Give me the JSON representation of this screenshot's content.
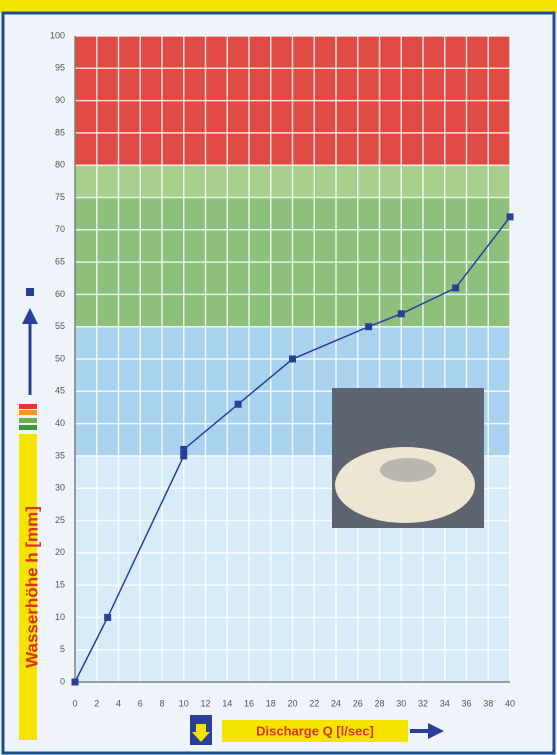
{
  "chart_data": {
    "type": "line",
    "x_label": "Discharge Q [l/sec]",
    "y_label": "Wasserhöhe h [mm]",
    "series": [
      {
        "name": "h",
        "color": "#2a3f9a",
        "x": [
          0,
          3,
          10,
          10,
          15,
          20,
          27,
          30,
          35,
          40
        ],
        "values": [
          0,
          10,
          35,
          36,
          43,
          50,
          55,
          57,
          61,
          72
        ]
      }
    ],
    "bands": [
      {
        "from": 0,
        "to": 35,
        "color": "#d8ebf8"
      },
      {
        "from": 35,
        "to": 55,
        "color": "#a9d2ef"
      },
      {
        "from": 55,
        "to": 75,
        "color": "#8cc07c"
      },
      {
        "from": 75,
        "to": 80,
        "color": "#a6cf8c"
      },
      {
        "from": 80,
        "to": 100,
        "color": "#df4a42"
      }
    ],
    "xlim": [
      0,
      40
    ],
    "xticks": [
      0,
      2,
      4,
      6,
      8,
      10,
      12,
      14,
      16,
      18,
      20,
      22,
      24,
      26,
      28,
      30,
      32,
      34,
      36,
      38,
      40
    ],
    "ylim": [
      0,
      100
    ],
    "yticks": [
      0,
      5,
      10,
      15,
      20,
      25,
      30,
      35,
      40,
      45,
      50,
      55,
      60,
      65,
      70,
      75,
      80,
      85,
      90,
      95,
      100
    ],
    "grid": true
  }
}
